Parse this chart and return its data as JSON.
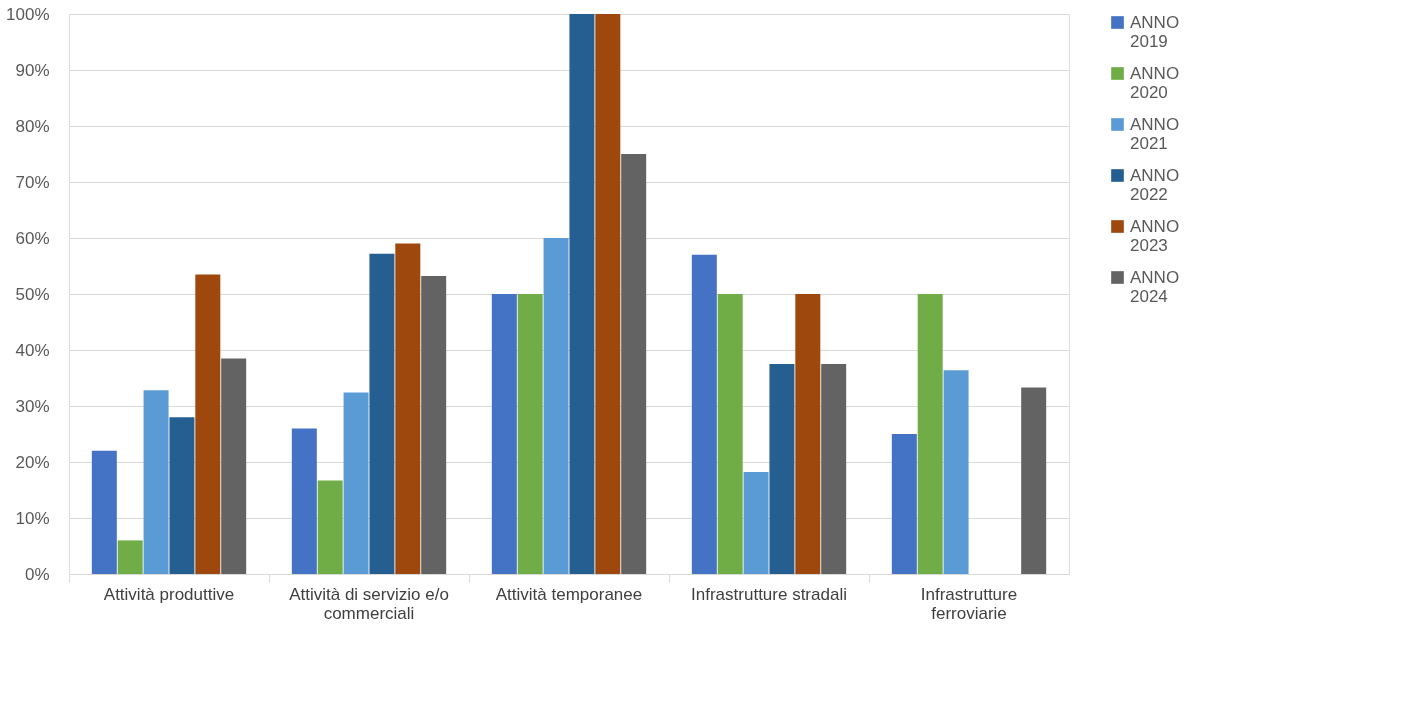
{
  "chart_data": {
    "type": "bar",
    "categories": [
      "Attività produttive",
      "Attività di servizio e/o commerciali",
      "Attività temporanee",
      "Infrastrutture stradali",
      "Infrastrutture ferroviarie"
    ],
    "series": [
      {
        "name": "ANNO 2019",
        "color": "#4472c4",
        "values": [
          22,
          26,
          50,
          57,
          25
        ]
      },
      {
        "name": "ANNO 2020",
        "color": "#70ad47",
        "values": [
          6,
          16.7,
          50,
          50,
          50
        ]
      },
      {
        "name": "ANNO 2021",
        "color": "#5b9bd5",
        "values": [
          32.8,
          32.4,
          60,
          18.2,
          36.4
        ]
      },
      {
        "name": "ANNO 2022",
        "color": "#255e91",
        "values": [
          28,
          57.2,
          100,
          37.5,
          null
        ]
      },
      {
        "name": "ANNO 2023",
        "color": "#9e480e",
        "values": [
          53.5,
          59,
          100,
          50,
          null
        ]
      },
      {
        "name": "ANNO 2024",
        "color": "#636363",
        "values": [
          38.5,
          53.2,
          75,
          37.5,
          33.3
        ]
      }
    ],
    "ylim": [
      0,
      100
    ],
    "yticks": [
      {
        "value": 0,
        "label": "0%"
      },
      {
        "value": 10,
        "label": "10%"
      },
      {
        "value": 20,
        "label": "20%"
      },
      {
        "value": 30,
        "label": "30%"
      },
      {
        "value": 40,
        "label": "40%"
      },
      {
        "value": 50,
        "label": "50%"
      },
      {
        "value": 60,
        "label": "60%"
      },
      {
        "value": 70,
        "label": "70%"
      },
      {
        "value": 80,
        "label": "80%"
      },
      {
        "value": 90,
        "label": "90%"
      },
      {
        "value": 100,
        "label": "100%"
      }
    ],
    "grid": "y",
    "legend": "right"
  }
}
